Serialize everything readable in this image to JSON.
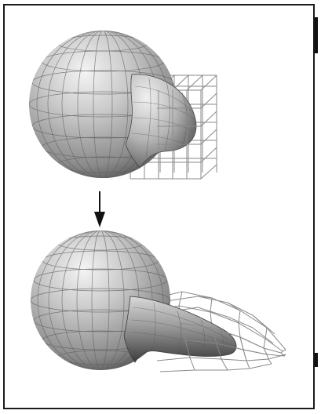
{
  "figure": {
    "panels": [
      {
        "id": "before",
        "object": "sphere-with-lattice-cage-undeformed"
      },
      {
        "id": "after",
        "object": "sphere-with-lattice-cage-deformed"
      }
    ],
    "transition": "arrow-down-icon",
    "colors": {
      "border": "#1a1a1a",
      "lattice": "#8a8a8a",
      "surface_light": "#f2f2f2",
      "surface_dark": "#3e3e3e",
      "gridline": "#5e5e5e"
    }
  }
}
